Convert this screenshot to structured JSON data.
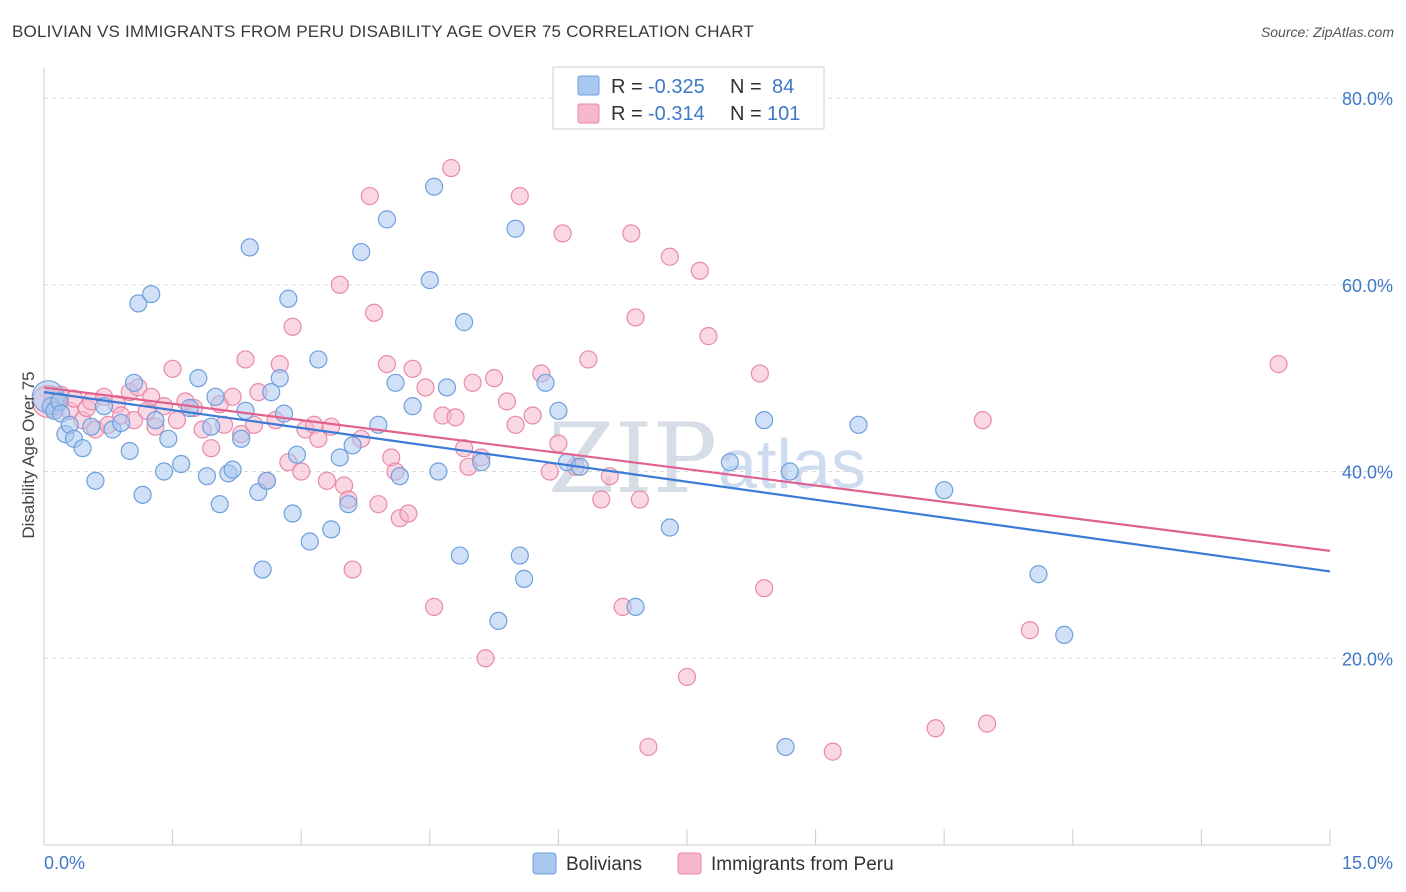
{
  "title": "BOLIVIAN VS IMMIGRANTS FROM PERU DISABILITY AGE OVER 75 CORRELATION CHART",
  "source": "Source: ZipAtlas.com",
  "watermark": {
    "zip": "ZIP",
    "atlas": "atlas"
  },
  "legend": {
    "r_label": "R =",
    "n_label": "N =",
    "rows": [
      {
        "name": "Bolivians",
        "r": "-0.325",
        "n": "84"
      },
      {
        "name": "Immigrants from Peru",
        "r": "-0.314",
        "n": "101"
      }
    ]
  },
  "colors": {
    "blue_fill": "#a9c8f0",
    "blue_stroke": "#6f9fdc",
    "blue_line": "#3a7bd5",
    "pink_fill": "#f6b8cc",
    "pink_stroke": "#e98aa8",
    "pink_line": "#e0608e",
    "grid": "#d9d9d9",
    "axis_text": "#3f78c9"
  },
  "chart_data": {
    "type": "scatter",
    "title": "BOLIVIAN VS IMMIGRANTS FROM PERU DISABILITY AGE OVER 75 CORRELATION CHART",
    "xlabel": "",
    "ylabel": "Disability Age Over 75",
    "xlim": [
      0,
      15
    ],
    "ylim": [
      0,
      83
    ],
    "x_tick_labels": [
      "0.0%",
      "15.0%"
    ],
    "y_ticks": [
      20,
      40,
      60,
      80
    ],
    "y_tick_labels": [
      "20.0%",
      "40.0%",
      "60.0%",
      "80.0%"
    ],
    "grid": true,
    "legend_position": "top-center",
    "series": [
      {
        "name": "Bolivians",
        "trend": {
          "x0": 0,
          "y0": 48.5,
          "x1": 15,
          "y1": 29.3
        },
        "points": [
          [
            0.05,
            48.0,
            1
          ],
          [
            0.08,
            47.0,
            0
          ],
          [
            0.12,
            46.5,
            0
          ],
          [
            0.18,
            47.5,
            0
          ],
          [
            0.2,
            46.2,
            0
          ],
          [
            0.25,
            44.0,
            0
          ],
          [
            0.3,
            45.0,
            0
          ],
          [
            0.35,
            43.5,
            0
          ],
          [
            0.45,
            42.5,
            0
          ],
          [
            0.55,
            44.8,
            0
          ],
          [
            0.6,
            39.0,
            0
          ],
          [
            0.7,
            47.0,
            0
          ],
          [
            0.8,
            44.5,
            0
          ],
          [
            0.9,
            45.2,
            0
          ],
          [
            1.0,
            42.2,
            0
          ],
          [
            1.05,
            49.5,
            0
          ],
          [
            1.1,
            58.0,
            0
          ],
          [
            1.15,
            37.5,
            0
          ],
          [
            1.25,
            59.0,
            0
          ],
          [
            1.3,
            45.5,
            0
          ],
          [
            1.4,
            40.0,
            0
          ],
          [
            1.45,
            43.5,
            0
          ],
          [
            1.6,
            40.8,
            0
          ],
          [
            1.7,
            46.8,
            0
          ],
          [
            1.8,
            50.0,
            0
          ],
          [
            1.9,
            39.5,
            0
          ],
          [
            1.95,
            44.8,
            0
          ],
          [
            2.0,
            48.0,
            0
          ],
          [
            2.05,
            36.5,
            0
          ],
          [
            2.15,
            39.8,
            0
          ],
          [
            2.2,
            40.2,
            0
          ],
          [
            2.3,
            43.5,
            0
          ],
          [
            2.35,
            46.5,
            0
          ],
          [
            2.4,
            64.0,
            0
          ],
          [
            2.5,
            37.8,
            0
          ],
          [
            2.55,
            29.5,
            0
          ],
          [
            2.6,
            39.0,
            0
          ],
          [
            2.65,
            48.5,
            0
          ],
          [
            2.75,
            50.0,
            0
          ],
          [
            2.8,
            46.2,
            0
          ],
          [
            2.85,
            58.5,
            0
          ],
          [
            2.9,
            35.5,
            0
          ],
          [
            2.95,
            41.8,
            0
          ],
          [
            3.1,
            32.5,
            0
          ],
          [
            3.2,
            52.0,
            0
          ],
          [
            3.35,
            33.8,
            0
          ],
          [
            3.45,
            41.5,
            0
          ],
          [
            3.55,
            36.5,
            0
          ],
          [
            3.6,
            42.8,
            0
          ],
          [
            3.7,
            63.5,
            0
          ],
          [
            3.9,
            45.0,
            0
          ],
          [
            4.0,
            67.0,
            0
          ],
          [
            4.1,
            49.5,
            0
          ],
          [
            4.15,
            39.5,
            0
          ],
          [
            4.3,
            47.0,
            0
          ],
          [
            4.5,
            60.5,
            0
          ],
          [
            4.55,
            70.5,
            0
          ],
          [
            4.6,
            40.0,
            0
          ],
          [
            4.7,
            49.0,
            0
          ],
          [
            4.85,
            31.0,
            0
          ],
          [
            4.9,
            56.0,
            0
          ],
          [
            5.1,
            41.0,
            0
          ],
          [
            5.3,
            24.0,
            0
          ],
          [
            5.5,
            66.0,
            0
          ],
          [
            5.55,
            31.0,
            0
          ],
          [
            5.6,
            28.5,
            0
          ],
          [
            5.85,
            49.5,
            0
          ],
          [
            6.0,
            46.5,
            0
          ],
          [
            6.1,
            41.0,
            0
          ],
          [
            6.25,
            40.5,
            0
          ],
          [
            6.9,
            25.5,
            0
          ],
          [
            7.3,
            34.0,
            0
          ],
          [
            8.0,
            41.0,
            0
          ],
          [
            8.4,
            45.5,
            0
          ],
          [
            8.65,
            10.5,
            0
          ],
          [
            8.7,
            40.0,
            0
          ],
          [
            9.5,
            45.0,
            0
          ],
          [
            10.5,
            38.0,
            0
          ],
          [
            11.6,
            29.0,
            0
          ],
          [
            11.9,
            22.5,
            0
          ]
        ]
      },
      {
        "name": "Immigrants from Peru",
        "trend": {
          "x0": 0,
          "y0": 49.0,
          "x1": 15,
          "y1": 31.5
        },
        "points": [
          [
            0.05,
            47.5,
            1
          ],
          [
            0.1,
            48.0,
            0
          ],
          [
            0.15,
            47.0,
            0
          ],
          [
            0.2,
            48.2,
            0
          ],
          [
            0.3,
            46.5,
            0
          ],
          [
            0.35,
            47.8,
            0
          ],
          [
            0.45,
            45.5,
            0
          ],
          [
            0.5,
            46.8,
            0
          ],
          [
            0.55,
            47.5,
            0
          ],
          [
            0.6,
            44.5,
            0
          ],
          [
            0.7,
            48.0,
            0
          ],
          [
            0.75,
            45.0,
            0
          ],
          [
            0.85,
            47.2,
            0
          ],
          [
            0.9,
            46.0,
            0
          ],
          [
            1.0,
            48.5,
            0
          ],
          [
            1.05,
            45.5,
            0
          ],
          [
            1.1,
            49.0,
            0
          ],
          [
            1.2,
            46.5,
            0
          ],
          [
            1.25,
            48.0,
            0
          ],
          [
            1.3,
            44.8,
            0
          ],
          [
            1.4,
            47.0,
            0
          ],
          [
            1.5,
            51.0,
            0
          ],
          [
            1.55,
            45.5,
            0
          ],
          [
            1.65,
            47.5,
            0
          ],
          [
            1.75,
            46.8,
            0
          ],
          [
            1.85,
            44.5,
            0
          ],
          [
            1.95,
            42.5,
            0
          ],
          [
            2.05,
            47.2,
            0
          ],
          [
            2.1,
            45.0,
            0
          ],
          [
            2.2,
            48.0,
            0
          ],
          [
            2.3,
            44.0,
            0
          ],
          [
            2.35,
            52.0,
            0
          ],
          [
            2.45,
            45.0,
            0
          ],
          [
            2.5,
            48.5,
            0
          ],
          [
            2.6,
            39.0,
            0
          ],
          [
            2.7,
            45.5,
            0
          ],
          [
            2.75,
            51.5,
            0
          ],
          [
            2.85,
            41.0,
            0
          ],
          [
            2.9,
            55.5,
            0
          ],
          [
            3.0,
            40.0,
            0
          ],
          [
            3.05,
            44.5,
            0
          ],
          [
            3.15,
            45.0,
            0
          ],
          [
            3.2,
            43.5,
            0
          ],
          [
            3.3,
            39.0,
            0
          ],
          [
            3.35,
            44.8,
            0
          ],
          [
            3.45,
            60.0,
            0
          ],
          [
            3.5,
            38.5,
            0
          ],
          [
            3.55,
            37.0,
            0
          ],
          [
            3.6,
            29.5,
            0
          ],
          [
            3.7,
            43.5,
            0
          ],
          [
            3.8,
            69.5,
            0
          ],
          [
            3.85,
            57.0,
            0
          ],
          [
            3.9,
            36.5,
            0
          ],
          [
            4.0,
            51.5,
            0
          ],
          [
            4.05,
            41.5,
            0
          ],
          [
            4.1,
            40.0,
            0
          ],
          [
            4.15,
            35.0,
            0
          ],
          [
            4.25,
            35.5,
            0
          ],
          [
            4.3,
            51.0,
            0
          ],
          [
            4.45,
            49.0,
            0
          ],
          [
            4.55,
            25.5,
            0
          ],
          [
            4.65,
            46.0,
            0
          ],
          [
            4.75,
            72.5,
            0
          ],
          [
            4.8,
            45.8,
            0
          ],
          [
            4.9,
            42.5,
            0
          ],
          [
            4.95,
            40.5,
            0
          ],
          [
            5.0,
            49.5,
            0
          ],
          [
            5.1,
            41.5,
            0
          ],
          [
            5.15,
            20.0,
            0
          ],
          [
            5.25,
            50.0,
            0
          ],
          [
            5.4,
            47.5,
            0
          ],
          [
            5.5,
            45.0,
            0
          ],
          [
            5.55,
            69.5,
            0
          ],
          [
            5.7,
            46.0,
            0
          ],
          [
            5.8,
            50.5,
            0
          ],
          [
            5.9,
            40.0,
            0
          ],
          [
            6.0,
            43.0,
            0
          ],
          [
            6.05,
            65.5,
            0
          ],
          [
            6.2,
            40.5,
            0
          ],
          [
            6.35,
            52.0,
            0
          ],
          [
            6.5,
            37.0,
            0
          ],
          [
            6.6,
            39.5,
            0
          ],
          [
            6.75,
            25.5,
            0
          ],
          [
            6.85,
            65.5,
            0
          ],
          [
            6.9,
            56.5,
            0
          ],
          [
            6.95,
            37.0,
            0
          ],
          [
            7.05,
            10.5,
            0
          ],
          [
            7.3,
            63.0,
            0
          ],
          [
            7.5,
            18.0,
            0
          ],
          [
            7.65,
            61.5,
            0
          ],
          [
            7.75,
            54.5,
            0
          ],
          [
            8.35,
            50.5,
            0
          ],
          [
            8.4,
            27.5,
            0
          ],
          [
            9.2,
            10.0,
            0
          ],
          [
            10.4,
            12.5,
            0
          ],
          [
            10.95,
            45.5,
            0
          ],
          [
            11.0,
            13.0,
            0
          ],
          [
            11.5,
            23.0,
            0
          ],
          [
            14.4,
            51.5,
            0
          ]
        ]
      }
    ]
  }
}
